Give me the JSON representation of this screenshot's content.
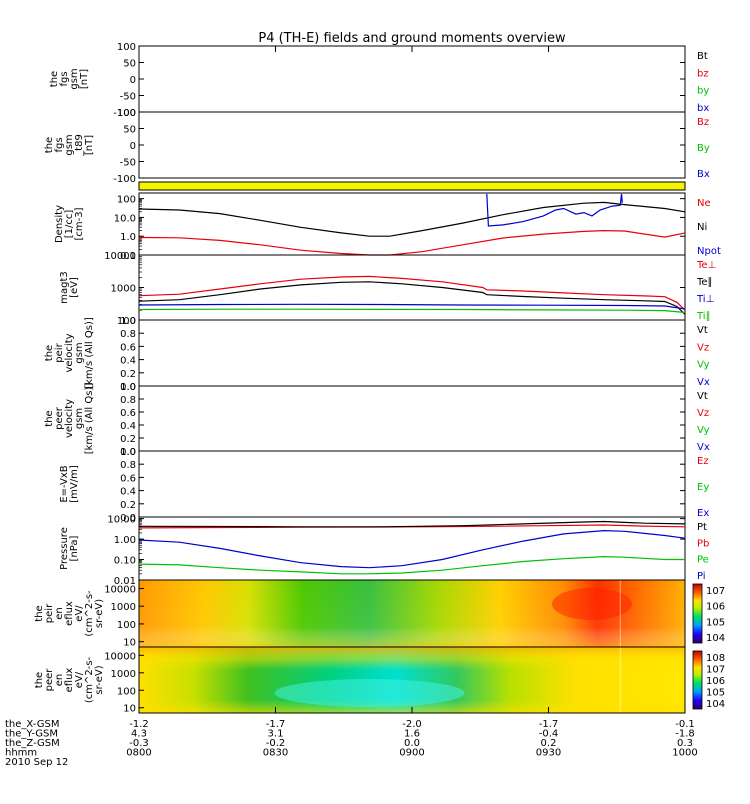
{
  "title": "P4 (TH-E) fields and ground moments overview",
  "colors": {
    "black": "#000000",
    "red": "#e8000b",
    "green": "#00c000",
    "blue": "#0000d0",
    "yellow": "#f5f500"
  },
  "chart_data": [
    {
      "type": "line",
      "panel": "fgs_gsm",
      "ylabel": [
        "the",
        "fgs",
        "gsm",
        "[nT]"
      ],
      "ylim": [
        -100,
        100
      ],
      "ticks": [
        "100",
        "50",
        "0",
        "-50",
        "-100"
      ],
      "legend": [
        {
          "label": "Bt",
          "color": "black"
        },
        {
          "label": "bz",
          "color": "red"
        },
        {
          "label": "by",
          "color": "green"
        },
        {
          "label": "bx",
          "color": "blue"
        }
      ],
      "series": []
    },
    {
      "type": "line",
      "panel": "fgs_gsm_t89",
      "ylabel": [
        "the",
        "fgs",
        "gsm",
        "_t89",
        "[nT]"
      ],
      "ylim": [
        -100,
        100
      ],
      "ticks": [
        "100",
        "50",
        "0",
        "-50",
        "-100"
      ],
      "legend": [
        {
          "label": "Bz",
          "color": "red"
        },
        {
          "label": "By",
          "color": "green"
        },
        {
          "label": "Bx",
          "color": "blue"
        }
      ],
      "series": []
    },
    {
      "type": "bar",
      "panel": "mode_bar",
      "fill_color": "yellow"
    },
    {
      "type": "line",
      "panel": "density",
      "log": true,
      "ylabel": [
        "Density",
        "[1/cc]",
        "[cm-3]"
      ],
      "ylim": [
        0.1,
        200
      ],
      "ticks": [
        "100",
        "10.0",
        "1.0",
        "0.1"
      ],
      "legend": [
        {
          "label": "Ne",
          "color": "red"
        },
        {
          "label": "Ni",
          "color": "black"
        },
        {
          "label": "Npot",
          "color": "blue"
        }
      ],
      "series": [
        {
          "name": "Ni",
          "color": "black",
          "points": [
            [
              0,
              28
            ],
            [
              10,
              25
            ],
            [
              20,
              16
            ],
            [
              30,
              7
            ],
            [
              40,
              3
            ],
            [
              50,
              1.5
            ],
            [
              57,
              1.0
            ],
            [
              62,
              1.0
            ],
            [
              70,
              2
            ],
            [
              80,
              5
            ],
            [
              90,
              14
            ],
            [
              100,
              34
            ],
            [
              110,
              57
            ],
            [
              115,
              63
            ],
            [
              120,
              48
            ],
            [
              130,
              30
            ],
            [
              135,
              20
            ]
          ]
        },
        {
          "name": "Ne",
          "color": "red",
          "points": [
            [
              0,
              0.85
            ],
            [
              10,
              0.82
            ],
            [
              20,
              0.6
            ],
            [
              30,
              0.35
            ],
            [
              40,
              0.18
            ],
            [
              50,
              0.12
            ],
            [
              57,
              0.1
            ],
            [
              62,
              0.1
            ],
            [
              70,
              0.15
            ],
            [
              80,
              0.35
            ],
            [
              90,
              0.8
            ],
            [
              100,
              1.3
            ],
            [
              110,
              1.8
            ],
            [
              115,
              2.0
            ],
            [
              120,
              1.9
            ],
            [
              130,
              0.9
            ],
            [
              135,
              1.5
            ]
          ]
        },
        {
          "name": "Npot",
          "color": "blue",
          "points": [
            [
              86,
              180
            ],
            [
              86.4,
              3.5
            ],
            [
              90,
              4
            ],
            [
              95,
              6
            ],
            [
              100,
              12
            ],
            [
              103,
              25
            ],
            [
              105,
              30
            ],
            [
              108,
              15
            ],
            [
              110,
              18
            ],
            [
              112,
              12
            ],
            [
              114,
              25
            ],
            [
              117,
              40
            ],
            [
              119,
              45
            ],
            [
              119.3,
              180
            ],
            [
              119.5,
              60
            ]
          ]
        }
      ]
    },
    {
      "type": "line",
      "panel": "temperature",
      "log": true,
      "ylabel": [
        "magt3",
        "[eV]"
      ],
      "ylim": [
        100,
        10000
      ],
      "ticks": [
        "10000",
        "1000",
        "100"
      ],
      "legend": [
        {
          "label": "Te⊥",
          "color": "red"
        },
        {
          "label": "Te∥",
          "color": "black"
        },
        {
          "label": "Ti⊥",
          "color": "blue"
        },
        {
          "label": "Ti∥",
          "color": "green"
        }
      ],
      "series": [
        {
          "name": "Te⊥",
          "color": "red",
          "points": [
            [
              0,
              560
            ],
            [
              10,
              620
            ],
            [
              20,
              900
            ],
            [
              30,
              1300
            ],
            [
              40,
              1800
            ],
            [
              50,
              2100
            ],
            [
              57,
              2200
            ],
            [
              65,
              1900
            ],
            [
              75,
              1500
            ],
            [
              85,
              1000
            ],
            [
              86,
              850
            ],
            [
              95,
              780
            ],
            [
              105,
              680
            ],
            [
              115,
              600
            ],
            [
              125,
              550
            ],
            [
              130,
              520
            ],
            [
              133,
              350
            ],
            [
              135,
              200
            ]
          ]
        },
        {
          "name": "Te∥",
          "color": "black",
          "points": [
            [
              0,
              380
            ],
            [
              10,
              420
            ],
            [
              20,
              600
            ],
            [
              30,
              900
            ],
            [
              40,
              1200
            ],
            [
              50,
              1450
            ],
            [
              57,
              1500
            ],
            [
              65,
              1300
            ],
            [
              75,
              1000
            ],
            [
              85,
              700
            ],
            [
              86,
              600
            ],
            [
              95,
              530
            ],
            [
              105,
              470
            ],
            [
              115,
              420
            ],
            [
              125,
              390
            ],
            [
              130,
              370
            ],
            [
              133,
              260
            ],
            [
              135,
              150
            ]
          ]
        },
        {
          "name": "Ti⊥",
          "color": "blue",
          "points": [
            [
              0,
              290
            ],
            [
              20,
              300
            ],
            [
              40,
              305
            ],
            [
              60,
              300
            ],
            [
              80,
              290
            ],
            [
              100,
              285
            ],
            [
              120,
              280
            ],
            [
              130,
              270
            ],
            [
              135,
              220
            ]
          ]
        },
        {
          "name": "Ti∥",
          "color": "green",
          "points": [
            [
              0,
              210
            ],
            [
              20,
              215
            ],
            [
              40,
              215
            ],
            [
              60,
              212
            ],
            [
              80,
              210
            ],
            [
              100,
              205
            ],
            [
              120,
              200
            ],
            [
              130,
              195
            ],
            [
              135,
              170
            ]
          ]
        }
      ]
    },
    {
      "type": "line",
      "panel": "peir_velocity",
      "ylabel": [
        "the",
        "peir",
        "velocity",
        "gsm",
        "[km/s (All Qs)]"
      ],
      "ylim": [
        0,
        1
      ],
      "ticks": [
        "1.0",
        "0.8",
        "0.6",
        "0.4",
        "0.2",
        "0.0"
      ],
      "legend": [
        {
          "label": "Vt",
          "color": "black"
        },
        {
          "label": "Vz",
          "color": "red"
        },
        {
          "label": "Vy",
          "color": "green"
        },
        {
          "label": "Vx",
          "color": "blue"
        }
      ],
      "series": []
    },
    {
      "type": "line",
      "panel": "peer_velocity",
      "ylabel": [
        "the",
        "peer",
        "velocity",
        "gsm",
        "[km/s (All Qs)]"
      ],
      "ylim": [
        0,
        1
      ],
      "ticks": [
        "1.0",
        "0.8",
        "0.6",
        "0.4",
        "0.2",
        "0.0"
      ],
      "legend": [
        {
          "label": "Vt",
          "color": "black"
        },
        {
          "label": "Vz",
          "color": "red"
        },
        {
          "label": "Vy",
          "color": "green"
        },
        {
          "label": "Vx",
          "color": "blue"
        }
      ],
      "series": []
    },
    {
      "type": "line",
      "panel": "e_field",
      "ylabel": [
        "E=-VxB",
        "[mV/m]"
      ],
      "ylim": [
        0,
        1
      ],
      "ticks": [
        "1.0",
        "0.8",
        "0.6",
        "0.4",
        "0.2",
        "0.0"
      ],
      "legend": [
        {
          "label": "Ez",
          "color": "red"
        },
        {
          "label": "Ey",
          "color": "green"
        },
        {
          "label": "Ex",
          "color": "blue"
        }
      ],
      "series": []
    },
    {
      "type": "line",
      "panel": "pressure",
      "log": true,
      "ylabel": [
        "Pressure",
        "[nPa]"
      ],
      "ylim": [
        0.01,
        12
      ],
      "ticks": [
        "10.00",
        "1.00",
        "0.10",
        "0.01"
      ],
      "legend": [
        {
          "label": "Pt",
          "color": "black"
        },
        {
          "label": "Pb",
          "color": "red"
        },
        {
          "label": "Pe",
          "color": "green"
        },
        {
          "label": "Pi",
          "color": "blue"
        }
      ],
      "series": [
        {
          "name": "Pb",
          "color": "red",
          "points": [
            [
              0,
              3.5
            ],
            [
              20,
              3.7
            ],
            [
              40,
              3.8
            ],
            [
              60,
              3.9
            ],
            [
              80,
              4.1
            ],
            [
              100,
              4.5
            ],
            [
              115,
              4.9
            ],
            [
              125,
              4.3
            ],
            [
              135,
              4.0
            ]
          ]
        },
        {
          "name": "Pt",
          "color": "black",
          "points": [
            [
              0,
              4.2
            ],
            [
              20,
              4.1
            ],
            [
              40,
              4.0
            ],
            [
              60,
              4.0
            ],
            [
              80,
              4.5
            ],
            [
              95,
              5.5
            ],
            [
              110,
              6.8
            ],
            [
              115,
              7.2
            ],
            [
              125,
              6.0
            ],
            [
              135,
              5.5
            ]
          ]
        },
        {
          "name": "Pi",
          "color": "blue",
          "points": [
            [
              0,
              0.9
            ],
            [
              10,
              0.7
            ],
            [
              20,
              0.35
            ],
            [
              30,
              0.15
            ],
            [
              40,
              0.07
            ],
            [
              50,
              0.045
            ],
            [
              57,
              0.04
            ],
            [
              65,
              0.05
            ],
            [
              75,
              0.1
            ],
            [
              85,
              0.3
            ],
            [
              95,
              0.8
            ],
            [
              105,
              1.8
            ],
            [
              115,
              2.6
            ],
            [
              120,
              2.4
            ],
            [
              130,
              1.5
            ],
            [
              135,
              1.1
            ]
          ]
        },
        {
          "name": "Pe",
          "color": "green",
          "points": [
            [
              0,
              0.06
            ],
            [
              10,
              0.055
            ],
            [
              20,
              0.04
            ],
            [
              30,
              0.03
            ],
            [
              40,
              0.025
            ],
            [
              50,
              0.02
            ],
            [
              57,
              0.02
            ],
            [
              65,
              0.022
            ],
            [
              75,
              0.03
            ],
            [
              85,
              0.05
            ],
            [
              95,
              0.08
            ],
            [
              105,
              0.11
            ],
            [
              115,
              0.14
            ],
            [
              120,
              0.13
            ],
            [
              130,
              0.1
            ],
            [
              135,
              0.1
            ]
          ]
        }
      ]
    },
    {
      "type": "heatmap",
      "panel": "peir_en_eflux",
      "ylabel": [
        "the",
        "peir",
        "en",
        "eflux",
        "eV/",
        "(cm^2-s-",
        "sr-eV)"
      ],
      "ylim": [
        5,
        30000
      ],
      "ticks": [
        "10000",
        "1000",
        "100",
        "10"
      ],
      "colorbar_ticks": [
        "10^7",
        "10^6",
        "10^5",
        "10^4"
      ]
    },
    {
      "type": "heatmap",
      "panel": "peer_en_eflux",
      "ylabel": [
        "the",
        "peer",
        "en",
        "eflux",
        "eV/",
        "(cm^2-s-",
        "sr-eV)"
      ],
      "ylim": [
        5,
        30000
      ],
      "ticks": [
        "10000",
        "1000",
        "100",
        "10"
      ],
      "colorbar_ticks": [
        "10^8",
        "10^7",
        "10^6",
        "10^5",
        "10^4"
      ]
    }
  ],
  "xaxis": {
    "rows": [
      {
        "label": "the_X-GSM",
        "values": [
          "-1.2",
          "-1.7",
          "-2.0",
          "-1.7",
          "-0.1"
        ]
      },
      {
        "label": "the_Y-GSM",
        "values": [
          "4.3",
          "3.1",
          "1.6",
          "-0.4",
          "-1.8"
        ]
      },
      {
        "label": "the_Z-GSM",
        "values": [
          "-0.3",
          "-0.2",
          "0.0",
          "0.2",
          "0.3"
        ]
      },
      {
        "label": "hhmm",
        "values": [
          "0800",
          "0830",
          "0900",
          "0930",
          "1000"
        ]
      }
    ],
    "date": "2010 Sep 12"
  }
}
